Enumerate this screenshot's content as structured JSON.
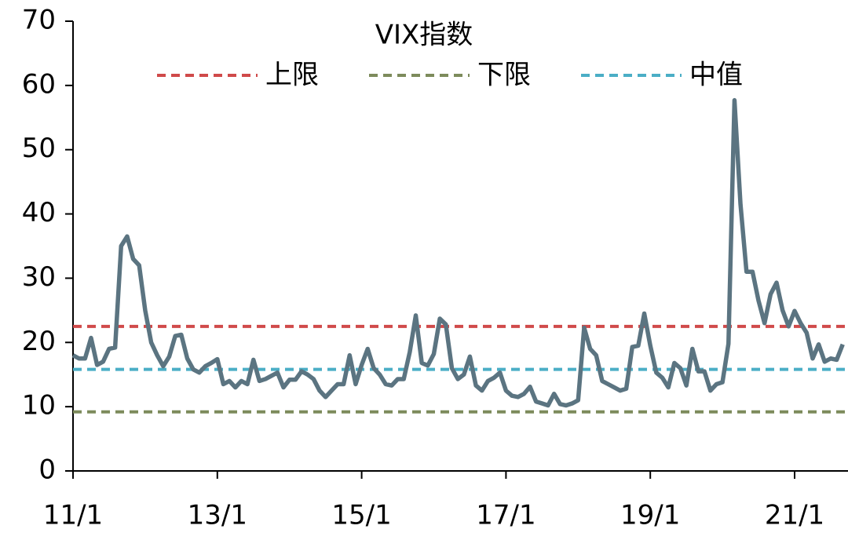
{
  "chart_data": {
    "type": "line",
    "title": "VIX指数",
    "categories": [
      "11/1",
      null,
      null,
      null,
      null,
      null,
      null,
      null,
      null,
      null,
      null,
      null,
      null,
      null,
      null,
      null,
      null,
      null,
      null,
      null,
      null,
      null,
      null,
      null,
      "13/1",
      null,
      null,
      null,
      null,
      null,
      null,
      null,
      null,
      null,
      null,
      null,
      null,
      null,
      null,
      null,
      null,
      null,
      null,
      null,
      null,
      null,
      null,
      null,
      "15/1",
      null,
      null,
      null,
      null,
      null,
      null,
      null,
      null,
      null,
      null,
      null,
      null,
      null,
      null,
      null,
      null,
      null,
      null,
      null,
      null,
      null,
      null,
      null,
      "17/1",
      null,
      null,
      null,
      null,
      null,
      null,
      null,
      null,
      null,
      null,
      null,
      null,
      null,
      null,
      null,
      null,
      null,
      null,
      null,
      null,
      null,
      null,
      null,
      "19/1",
      null,
      null,
      null,
      null,
      null,
      null,
      null,
      null,
      null,
      null,
      null,
      null,
      null,
      null,
      null,
      null,
      null,
      null,
      null,
      null,
      null,
      null,
      null,
      "21/1",
      null,
      null,
      null,
      null,
      null,
      null,
      null,
      null
    ],
    "series": [
      {
        "color": "#5b7481",
        "values": [
          18,
          17.5,
          17.5,
          20.7,
          16.5,
          17,
          19,
          19.2,
          35,
          36.5,
          33,
          32,
          25,
          20,
          18,
          16.3,
          17.8,
          21,
          21.2,
          17.5,
          15.8,
          15.3,
          16.3,
          16.8,
          17.4,
          13.5,
          14,
          13,
          14,
          13.5,
          17.3,
          14,
          14.3,
          14.8,
          15.3,
          13,
          14.2,
          14.2,
          15.5,
          15,
          14.3,
          12.5,
          11.5,
          12.5,
          13.5,
          13.5,
          18,
          13.5,
          16.5,
          19,
          16,
          15,
          13.5,
          13.3,
          14.3,
          14.3,
          18.5,
          24.2,
          16.8,
          16.4,
          18.2,
          23.7,
          22.8,
          16,
          14.3,
          15,
          17.8,
          13.3,
          12.5,
          14,
          14.5,
          15.3,
          12.5,
          11.7,
          11.5,
          12,
          13.1,
          10.8,
          10.5,
          10.2,
          12,
          10.4,
          10.2,
          10.5,
          11,
          22.3,
          19,
          18,
          14,
          13.5,
          13,
          12.5,
          12.8,
          19.3,
          19.5,
          24.5,
          19.5,
          15.3,
          14.5,
          13,
          16.8,
          16,
          13.3,
          19,
          15.5,
          15.5,
          12.5,
          13.5,
          13.8,
          19.8,
          57.7,
          41.5,
          31,
          31,
          26.5,
          23,
          27.5,
          29.3,
          25,
          22.5,
          24.9,
          23,
          21.5,
          17.5,
          19.7,
          17,
          17.5,
          17.3,
          19.7
        ]
      }
    ],
    "reference_lines": [
      {
        "name": "上限",
        "value": 22.5,
        "color": "#d04a4a"
      },
      {
        "name": "下限",
        "value": 9.2,
        "color": "#7d8b5c"
      },
      {
        "name": "中值",
        "value": 15.8,
        "color": "#4baec6"
      }
    ],
    "ylim": [
      0,
      70
    ],
    "yticks": [
      0,
      10,
      20,
      30,
      40,
      50,
      60,
      70
    ]
  }
}
